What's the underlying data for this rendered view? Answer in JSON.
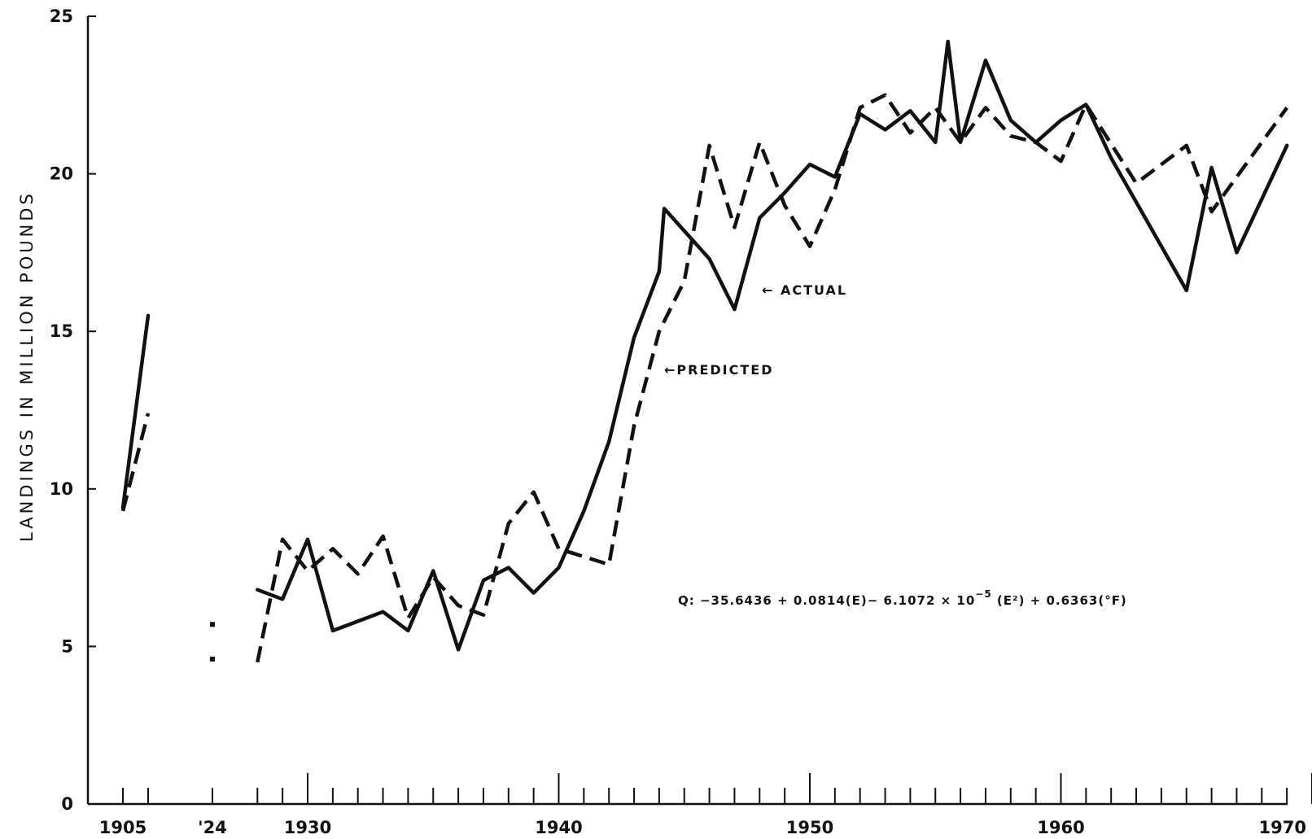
{
  "chart_data": {
    "type": "line",
    "title": "",
    "xlabel": "",
    "ylabel": "LANDINGS IN MILLION POUNDS",
    "ylim": [
      0,
      25
    ],
    "y_ticks": [
      "0",
      "5",
      "10",
      "15",
      "20",
      "25"
    ],
    "x_tick_labels": [
      "1905",
      "'24",
      "1930",
      "1940",
      "1950",
      "1960",
      "1970"
    ],
    "grid": false,
    "series": [
      {
        "name": "ACTUAL",
        "style": "solid",
        "segments": [
          [
            {
              "x": "1905",
              "y": 9.4
            },
            {
              "x": "1906",
              "y": 15.5
            }
          ],
          [
            {
              "x": "1928",
              "y": 6.8
            },
            {
              "x": "1929",
              "y": 6.5
            },
            {
              "x": "1930",
              "y": 8.4
            },
            {
              "x": "1931",
              "y": 5.5
            },
            {
              "x": "1932",
              "y": 5.8
            },
            {
              "x": "1933",
              "y": 6.1
            },
            {
              "x": "1934",
              "y": 5.5
            },
            {
              "x": "1935",
              "y": 7.4
            },
            {
              "x": "1936",
              "y": 4.9
            },
            {
              "x": "1937",
              "y": 7.1
            },
            {
              "x": "1938",
              "y": 7.5
            },
            {
              "x": "1939",
              "y": 6.7
            },
            {
              "x": "1940",
              "y": 7.5
            },
            {
              "x": "1941",
              "y": 9.3
            },
            {
              "x": "1942",
              "y": 11.5
            },
            {
              "x": "1943",
              "y": 14.8
            },
            {
              "x": "1944",
              "y": 16.9
            },
            {
              "x": "1944.2",
              "y": 18.9
            },
            {
              "x": "1946",
              "y": 17.3
            },
            {
              "x": "1947",
              "y": 15.7
            },
            {
              "x": "1948",
              "y": 18.6
            },
            {
              "x": "1949",
              "y": 19.4
            },
            {
              "x": "1950",
              "y": 20.3
            },
            {
              "x": "1951",
              "y": 19.9
            },
            {
              "x": "1952",
              "y": 21.9
            },
            {
              "x": "1953",
              "y": 21.4
            },
            {
              "x": "1954",
              "y": 22.0
            },
            {
              "x": "1955",
              "y": 21.0
            },
            {
              "x": "1955.5",
              "y": 24.2
            },
            {
              "x": "1956",
              "y": 21.0
            },
            {
              "x": "1957",
              "y": 23.6
            },
            {
              "x": "1958",
              "y": 21.7
            },
            {
              "x": "1959",
              "y": 21.0
            },
            {
              "x": "1960",
              "y": 21.7
            },
            {
              "x": "1961",
              "y": 22.2
            },
            {
              "x": "1962",
              "y": 20.5
            },
            {
              "x": "1965",
              "y": 16.3
            },
            {
              "x": "1966",
              "y": 20.2
            },
            {
              "x": "1967",
              "y": 17.5
            },
            {
              "x": "1969",
              "y": 20.9
            }
          ]
        ]
      },
      {
        "name": "PREDICTED",
        "style": "dashed",
        "segments": [
          [
            {
              "x": "1905",
              "y": 9.3
            },
            {
              "x": "1906",
              "y": 12.4
            }
          ],
          [
            {
              "x": "'24",
              "y": 5.7
            }
          ],
          [
            {
              "x": "'24",
              "y": 4.6
            }
          ],
          [
            {
              "x": "1928",
              "y": 4.5
            },
            {
              "x": "1929",
              "y": 8.4
            },
            {
              "x": "1930",
              "y": 7.4
            },
            {
              "x": "1931",
              "y": 8.1
            },
            {
              "x": "1932",
              "y": 7.3
            },
            {
              "x": "1933",
              "y": 8.5
            },
            {
              "x": "1934",
              "y": 5.9
            },
            {
              "x": "1935",
              "y": 7.2
            },
            {
              "x": "1936",
              "y": 6.3
            },
            {
              "x": "1937",
              "y": 6.0
            },
            {
              "x": "1938",
              "y": 8.9
            },
            {
              "x": "1939",
              "y": 9.9
            },
            {
              "x": "1940",
              "y": 8.1
            },
            {
              "x": "1942",
              "y": 7.6
            },
            {
              "x": "1943",
              "y": 12.0
            },
            {
              "x": "1944",
              "y": 15.0
            },
            {
              "x": "1945",
              "y": 16.6
            },
            {
              "x": "1946",
              "y": 20.9
            },
            {
              "x": "1947",
              "y": 18.3
            },
            {
              "x": "1948",
              "y": 21.0
            },
            {
              "x": "1949",
              "y": 19.0
            },
            {
              "x": "1950",
              "y": 17.7
            },
            {
              "x": "1951",
              "y": 19.5
            },
            {
              "x": "1952",
              "y": 22.1
            },
            {
              "x": "1953",
              "y": 22.5
            },
            {
              "x": "1954",
              "y": 21.3
            },
            {
              "x": "1955",
              "y": 22.1
            },
            {
              "x": "1956",
              "y": 21.0
            },
            {
              "x": "1957",
              "y": 22.1
            },
            {
              "x": "1958",
              "y": 21.2
            },
            {
              "x": "1959",
              "y": 21.0
            },
            {
              "x": "1960",
              "y": 20.4
            },
            {
              "x": "1961",
              "y": 22.2
            },
            {
              "x": "1963",
              "y": 19.7
            },
            {
              "x": "1965",
              "y": 20.9
            },
            {
              "x": "1966",
              "y": 18.8
            },
            {
              "x": "1969",
              "y": 22.1
            }
          ]
        ]
      }
    ],
    "annotations": [
      {
        "text": "← ACTUAL",
        "target_series": "ACTUAL"
      },
      {
        "text": "←PREDICTED",
        "target_series": "PREDICTED"
      }
    ],
    "equation": {
      "prefix": "Q: −35.6436 + 0.0814(E)− 6.1072 × 10",
      "exponent": "−5",
      "suffix": " (E²) + 0.6363(°F)"
    }
  }
}
